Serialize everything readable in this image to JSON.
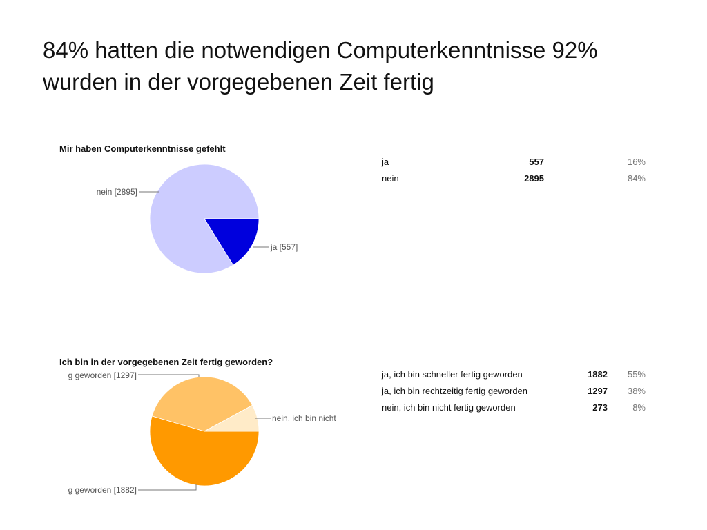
{
  "slide": {
    "title_line1": "84% hatten die notwendigen Computerkenntnisse 92%",
    "title_line2": "wurden in der vorgegebenen Zeit fertig"
  },
  "chart_data": [
    {
      "type": "pie",
      "title": "Mir haben Computerkenntnisse gefehlt",
      "slices": [
        {
          "label": "nein",
          "value": 2895,
          "percent": "84%",
          "color": "#ccccff",
          "callout": "nein [2895]"
        },
        {
          "label": "ja",
          "value": 557,
          "percent": "16%",
          "color": "#0000dd",
          "callout": "ja [557]"
        }
      ]
    },
    {
      "type": "pie",
      "title": "Ich bin in der vorgegebenen Zeit fertig geworden?",
      "slices": [
        {
          "label": "ja, ich bin schneller fertig geworden",
          "value": 1882,
          "percent": "55%",
          "color": "#ff9900",
          "callout": "g geworden [1882]"
        },
        {
          "label": "ja, ich bin rechtzeitig fertig geworden",
          "value": 1297,
          "percent": "38%",
          "color": "#ffc266",
          "callout": "g geworden [1297]"
        },
        {
          "label": "nein, ich bin nicht fertig geworden",
          "value": 273,
          "percent": "8%",
          "color": "#ffebc8",
          "callout": "nein, ich bin  nicht"
        }
      ]
    }
  ]
}
